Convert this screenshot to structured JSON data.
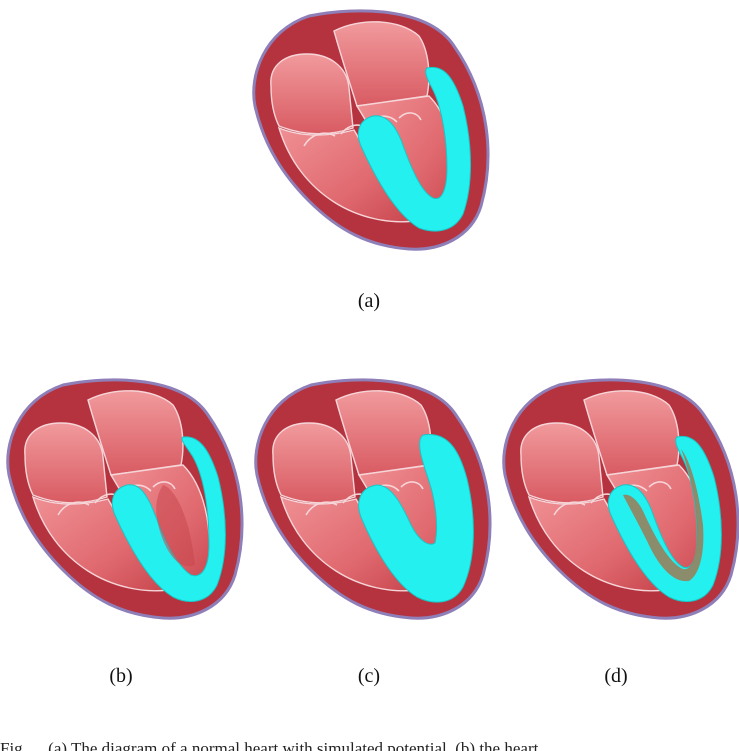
{
  "colors": {
    "outer_tissue": "#b5333f",
    "outline": "#8f7fb8",
    "chamber": "#e87b7e",
    "chamber_dark": "#c9474f",
    "highlight": "#24f0f0",
    "olive_band": "#9e7a55",
    "valve_line": "#f6d5d8"
  },
  "captions": {
    "a": "(a)",
    "b": "(b)",
    "c": "(c)",
    "d": "(d)"
  },
  "footer_text": "Fig. ... (a) The diagram of a normal heart with simulated potential, (b) the heart..."
}
